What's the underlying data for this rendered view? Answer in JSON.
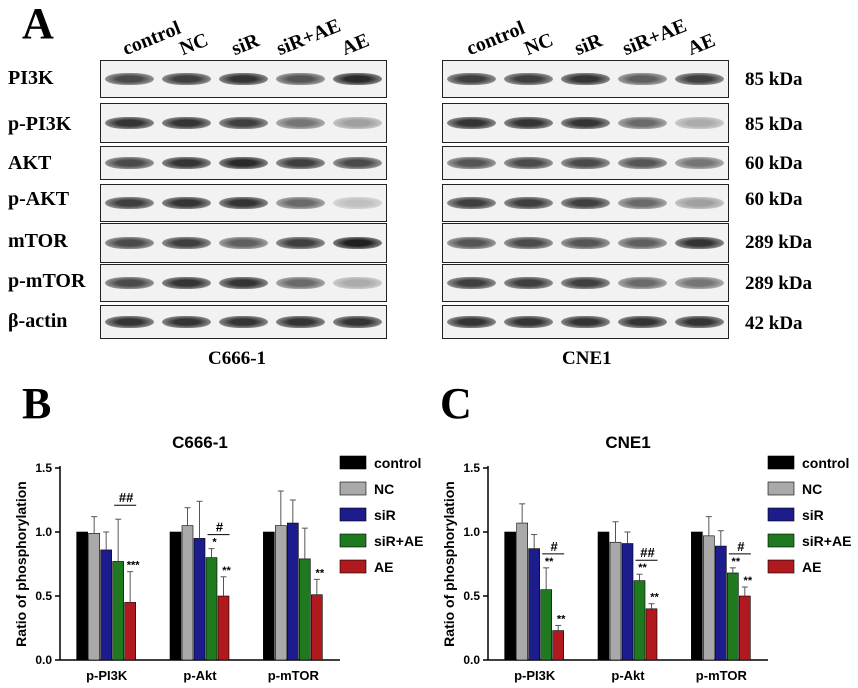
{
  "panels": {
    "a": "A",
    "b": "B",
    "c": "C"
  },
  "blots": {
    "lanes": [
      "control",
      "NC",
      "siR",
      "siR+AE",
      "AE"
    ],
    "proteins": [
      "PI3K",
      "p-PI3K",
      "AKT",
      "p-AKT",
      "mTOR",
      "p-mTOR",
      "β-actin"
    ],
    "kda": [
      "85 kDa",
      "85 kDa",
      "60 kDa",
      "60 kDa",
      "289 kDa",
      "289 kDa",
      "42 kDa"
    ],
    "cells": [
      "C666-1",
      "CNE1"
    ]
  },
  "colors": {
    "control": "#000000",
    "NC": "#a9a9a9",
    "siR": "#1c1c8c",
    "siR+AE": "#1f7a1f",
    "AE": "#b0191d"
  },
  "chart_data": [
    {
      "type": "bar",
      "title": "C666-1",
      "ylabel": "Ratio of phosphorylation",
      "ylim": [
        0,
        1.5
      ],
      "yticks": [
        "0.0",
        "0.5",
        "1.0",
        "1.5"
      ],
      "categories": [
        "p-PI3K",
        "p-Akt",
        "p-mTOR"
      ],
      "series": [
        {
          "name": "control",
          "values": [
            1.0,
            1.0,
            1.0
          ],
          "errors": [
            0,
            0,
            0
          ]
        },
        {
          "name": "NC",
          "values": [
            0.99,
            1.05,
            1.05
          ],
          "errors": [
            0.13,
            0.14,
            0.27
          ]
        },
        {
          "name": "siR",
          "values": [
            0.86,
            0.95,
            1.07
          ],
          "errors": [
            0.14,
            0.29,
            0.18
          ]
        },
        {
          "name": "siR+AE",
          "values": [
            0.77,
            0.8,
            0.79
          ],
          "errors": [
            0.33,
            0.07,
            0.24
          ]
        },
        {
          "name": "AE",
          "values": [
            0.45,
            0.5,
            0.51
          ],
          "errors": [
            0.24,
            0.15,
            0.12
          ]
        }
      ],
      "annotations": [
        {
          "category": "p-PI3K",
          "series": "AE",
          "text": "***"
        },
        {
          "category": "p-Akt",
          "series": "siR+AE",
          "text": "*"
        },
        {
          "category": "p-Akt",
          "series": "AE",
          "text": "**"
        },
        {
          "category": "p-mTOR",
          "series": "AE",
          "text": "**"
        }
      ],
      "brackets": [
        {
          "category": "p-PI3K",
          "text": "##"
        },
        {
          "category": "p-Akt",
          "text": "#"
        }
      ],
      "legend": "right"
    },
    {
      "type": "bar",
      "title": "CNE1",
      "ylabel": "Ratio of phosphorylation",
      "ylim": [
        0,
        1.5
      ],
      "yticks": [
        "0.0",
        "0.5",
        "1.0",
        "1.5"
      ],
      "categories": [
        "p-PI3K",
        "p-Akt",
        "p-mTOR"
      ],
      "series": [
        {
          "name": "control",
          "values": [
            1.0,
            1.0,
            1.0
          ],
          "errors": [
            0,
            0,
            0
          ]
        },
        {
          "name": "NC",
          "values": [
            1.07,
            0.92,
            0.97
          ],
          "errors": [
            0.15,
            0.16,
            0.15
          ]
        },
        {
          "name": "siR",
          "values": [
            0.87,
            0.91,
            0.89
          ],
          "errors": [
            0.11,
            0.09,
            0.12
          ]
        },
        {
          "name": "siR+AE",
          "values": [
            0.55,
            0.62,
            0.68
          ],
          "errors": [
            0.17,
            0.05,
            0.04
          ]
        },
        {
          "name": "AE",
          "values": [
            0.23,
            0.4,
            0.5
          ],
          "errors": [
            0.04,
            0.04,
            0.07
          ]
        }
      ],
      "annotations": [
        {
          "category": "p-PI3K",
          "series": "siR+AE",
          "text": "**"
        },
        {
          "category": "p-PI3K",
          "series": "AE",
          "text": "**"
        },
        {
          "category": "p-Akt",
          "series": "siR+AE",
          "text": "**"
        },
        {
          "category": "p-Akt",
          "series": "AE",
          "text": "**"
        },
        {
          "category": "p-mTOR",
          "series": "siR+AE",
          "text": "**"
        },
        {
          "category": "p-mTOR",
          "series": "AE",
          "text": "**"
        }
      ],
      "brackets": [
        {
          "category": "p-PI3K",
          "text": "#"
        },
        {
          "category": "p-Akt",
          "text": "##"
        },
        {
          "category": "p-mTOR",
          "text": "#"
        }
      ],
      "legend": "right"
    }
  ]
}
